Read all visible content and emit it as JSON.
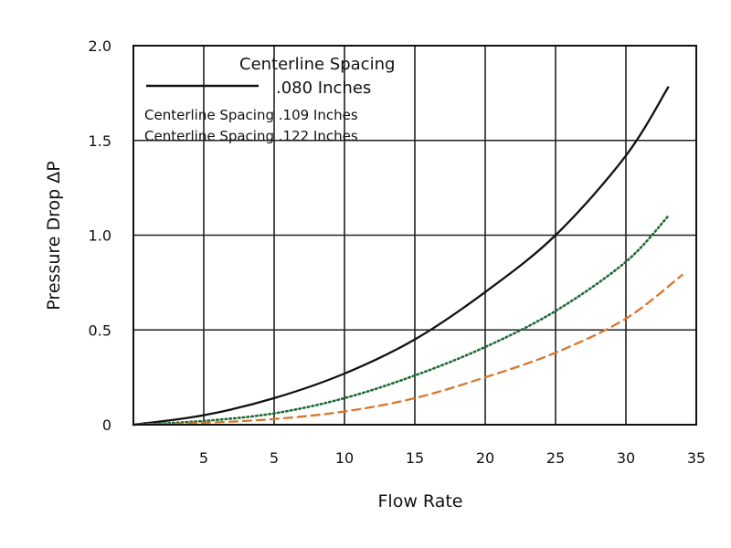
{
  "chart_data": {
    "type": "line",
    "xlabel": "Flow Rate",
    "ylabel": "Pressure Drop ΔP",
    "x_tick_labels": [
      "5",
      "5",
      "10",
      "15",
      "20",
      "25",
      "30",
      "35"
    ],
    "y_tick_labels": [
      "0",
      "0.5",
      "1.0",
      "1.5",
      "2.0"
    ],
    "xlim": [
      0,
      40
    ],
    "ylim": [
      0,
      2.0
    ],
    "grid": true,
    "legend": {
      "position": "top-left",
      "entries": [
        {
          "line1": "Centerline Spacing",
          "line2": ".080 Inches"
        },
        {
          "text": "Centerline Spacing .109 Inches"
        },
        {
          "text": "Centerline Spacing .122 Inches"
        }
      ]
    },
    "series": [
      {
        "name": "Centerline Spacing .080 Inches",
        "color": "#111111",
        "style": "solid",
        "x": [
          0,
          5,
          10,
          15,
          20,
          25,
          30,
          35,
          38
        ],
        "y": [
          0,
          0.05,
          0.14,
          0.27,
          0.45,
          0.7,
          1.0,
          1.42,
          1.78
        ]
      },
      {
        "name": "Centerline Spacing .109 Inches",
        "color": "#1e6b35",
        "style": "dotted",
        "x": [
          0,
          5,
          10,
          15,
          20,
          25,
          30,
          35,
          38
        ],
        "y": [
          0,
          0.02,
          0.06,
          0.14,
          0.26,
          0.41,
          0.6,
          0.86,
          1.1
        ]
      },
      {
        "name": "Centerline Spacing .122 Inches",
        "color": "#d8762e",
        "style": "dashed",
        "x": [
          0,
          5,
          10,
          15,
          20,
          25,
          30,
          35,
          39
        ],
        "y": [
          0,
          0.01,
          0.03,
          0.07,
          0.14,
          0.25,
          0.38,
          0.56,
          0.79
        ]
      }
    ]
  }
}
